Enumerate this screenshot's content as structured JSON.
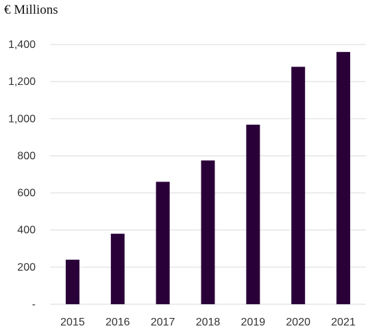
{
  "chart_data": {
    "type": "bar",
    "title": "",
    "unit_label": "€ Millions",
    "xlabel": "",
    "ylabel": "",
    "categories": [
      "2015",
      "2016",
      "2017",
      "2018",
      "2019",
      "2020",
      "2021"
    ],
    "series": [
      {
        "values": [
          240,
          380,
          660,
          775,
          968,
          1280,
          1360
        ]
      }
    ],
    "ylim": [
      0,
      1400
    ],
    "yticks": [
      0,
      200,
      400,
      600,
      800,
      1000,
      1200,
      1400
    ],
    "ytick_labels": [
      "-",
      "200",
      "400",
      "600",
      "800",
      "1,000",
      "1,200",
      "1,400"
    ],
    "grid": true,
    "legend": "none",
    "colors": {
      "bar": "#2a0038",
      "grid": "#d9d9d9",
      "text": "#333333"
    }
  }
}
